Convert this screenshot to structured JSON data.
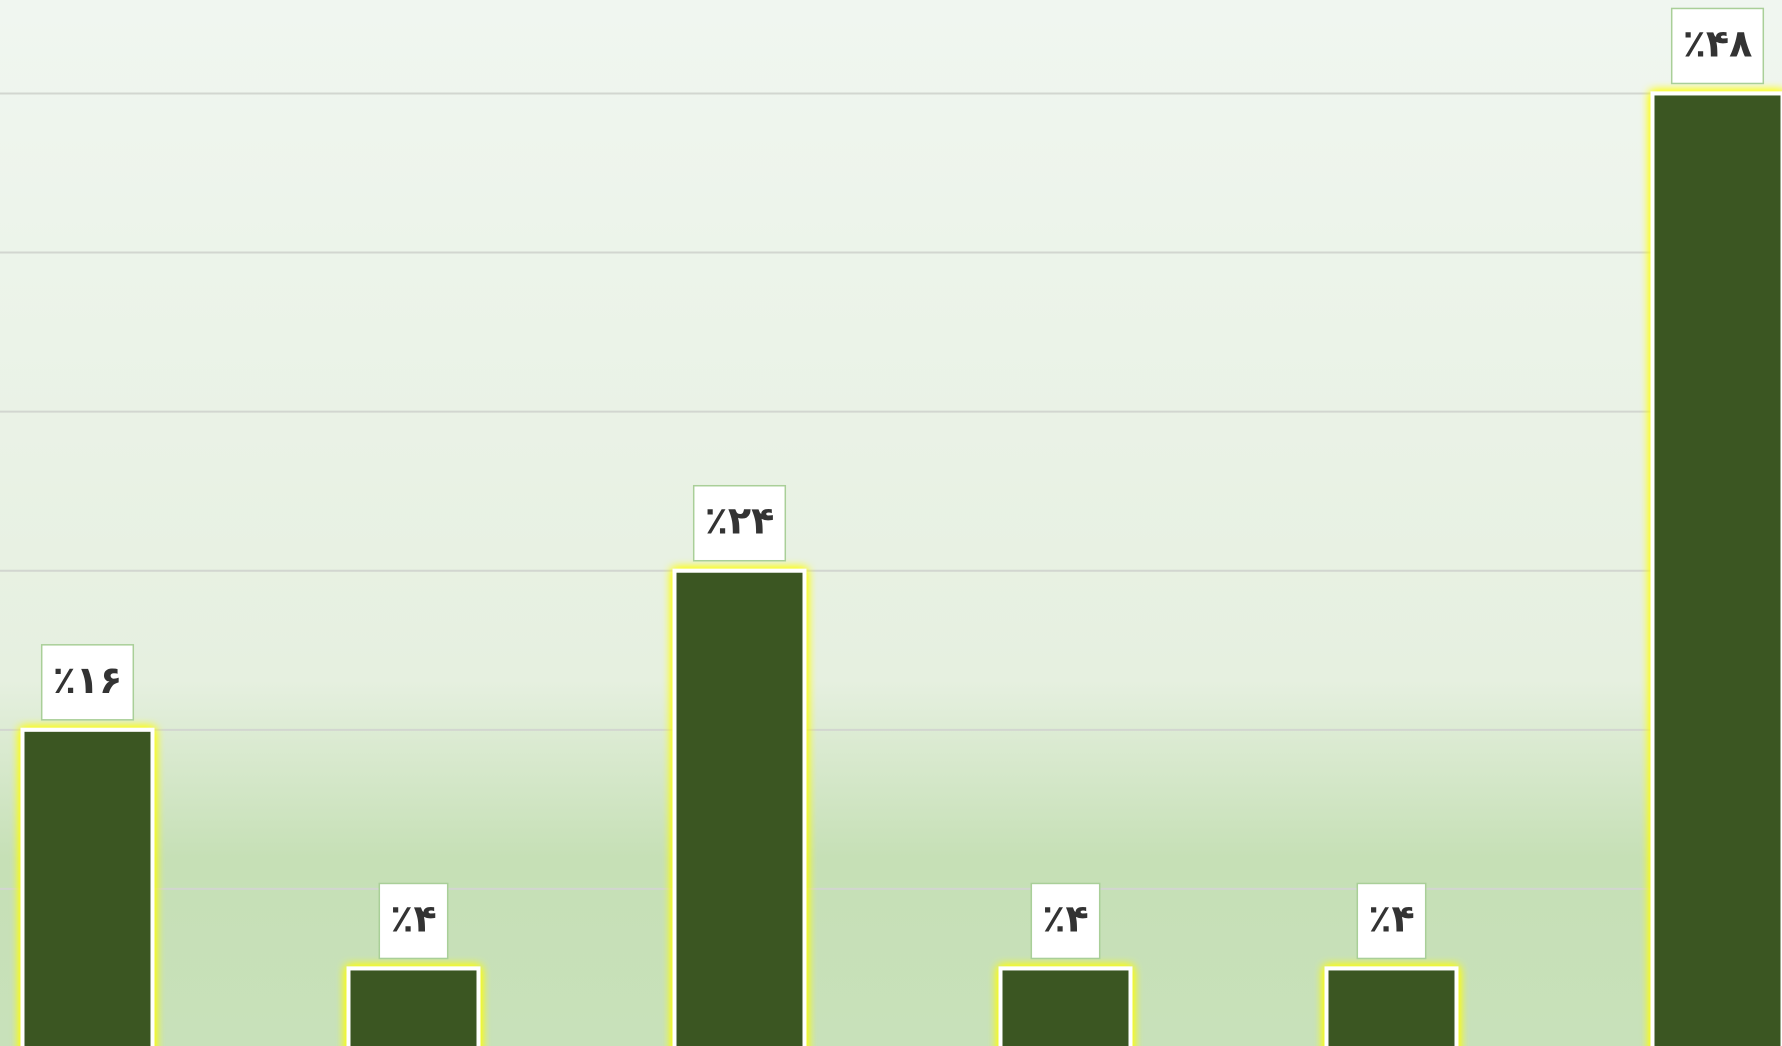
{
  "chart_data": {
    "type": "bar",
    "categories": [
      null,
      null,
      null,
      null,
      null,
      null
    ],
    "values": [
      16,
      4,
      24,
      4,
      4,
      48
    ],
    "value_labels": [
      "٪۱۶",
      "٪۴",
      "٪۲۴",
      "٪۴",
      "٪۴",
      "٪۴۸"
    ],
    "color": "#3a5624",
    "ylim": [
      0,
      52.7
    ],
    "yticks": [
      0,
      8,
      16,
      24,
      32,
      40,
      48
    ],
    "grid": true
  }
}
